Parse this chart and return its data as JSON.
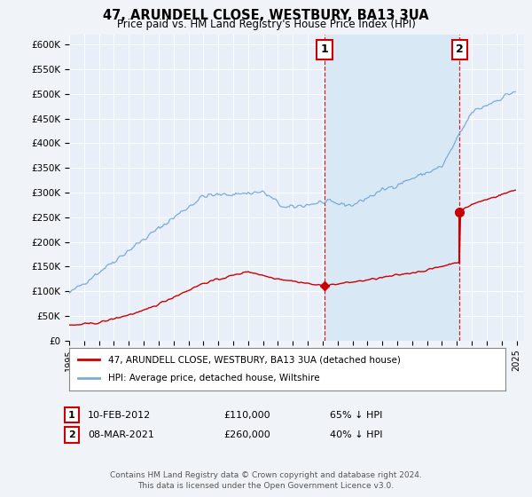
{
  "title": "47, ARUNDELL CLOSE, WESTBURY, BA13 3UA",
  "subtitle": "Price paid vs. HM Land Registry's House Price Index (HPI)",
  "hpi_label": "HPI: Average price, detached house, Wiltshire",
  "property_label": "47, ARUNDELL CLOSE, WESTBURY, BA13 3UA (detached house)",
  "footer": "Contains HM Land Registry data © Crown copyright and database right 2024.\nThis data is licensed under the Open Government Licence v3.0.",
  "hpi_color": "#7aabdb",
  "property_color": "#cc0000",
  "shade_color": "#d8e8f5",
  "marker1_year": 2012.12,
  "marker2_year": 2021.18,
  "marker1_price": 110000,
  "marker2_price": 260000,
  "ylim": [
    0,
    620000
  ],
  "xlim_start": 1995,
  "xlim_end": 2025.5,
  "background_color": "#f0f4f8",
  "plot_bg_color": "#e8eff8",
  "grid_color": "#ffffff"
}
